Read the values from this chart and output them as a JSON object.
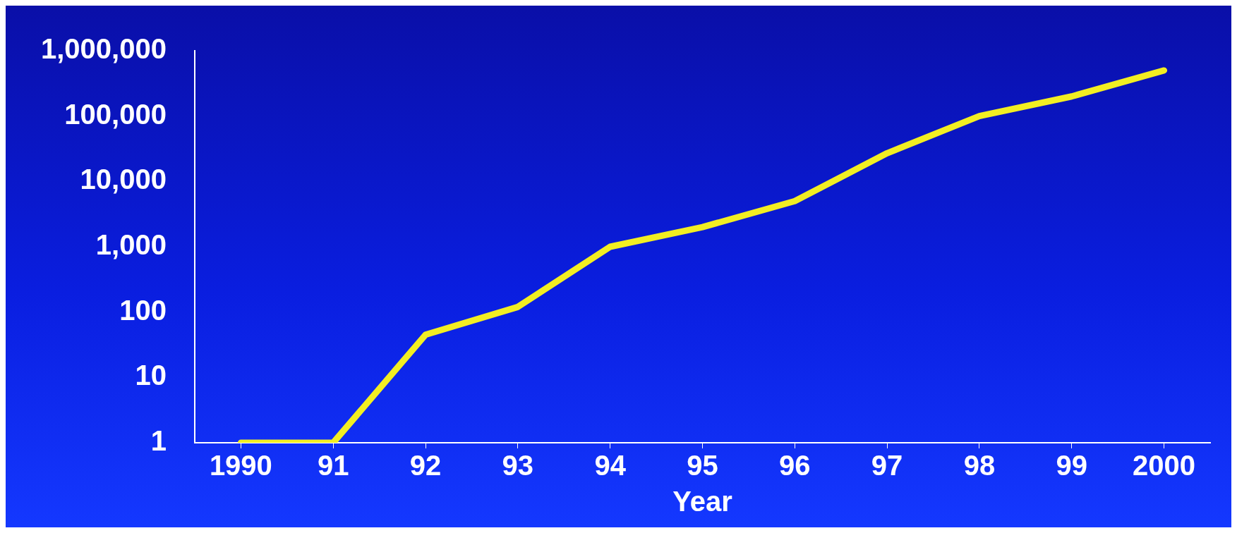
{
  "chart_data": {
    "type": "line",
    "xlabel": "Year",
    "categories": [
      "1990",
      "91",
      "92",
      "93",
      "94",
      "95",
      "96",
      "97",
      "98",
      "99",
      "2000"
    ],
    "series": [
      {
        "color": "#f2ee22",
        "values": [
          1,
          1,
          45,
          120,
          1000,
          2000,
          5000,
          27000,
          100000,
          200000,
          500000
        ]
      }
    ],
    "log": "y",
    "ylim": [
      1,
      1000000
    ],
    "yticks": [
      1,
      10,
      100,
      {
        "value": 1000,
        "label": "1,000"
      },
      {
        "value": 10000,
        "label": "10,000"
      },
      {
        "value": 100000,
        "label": "100,000"
      },
      {
        "value": 1000000,
        "label": "1,000,000"
      }
    ],
    "grid": false,
    "legend": false,
    "marker": "none",
    "line_style": "solid"
  }
}
